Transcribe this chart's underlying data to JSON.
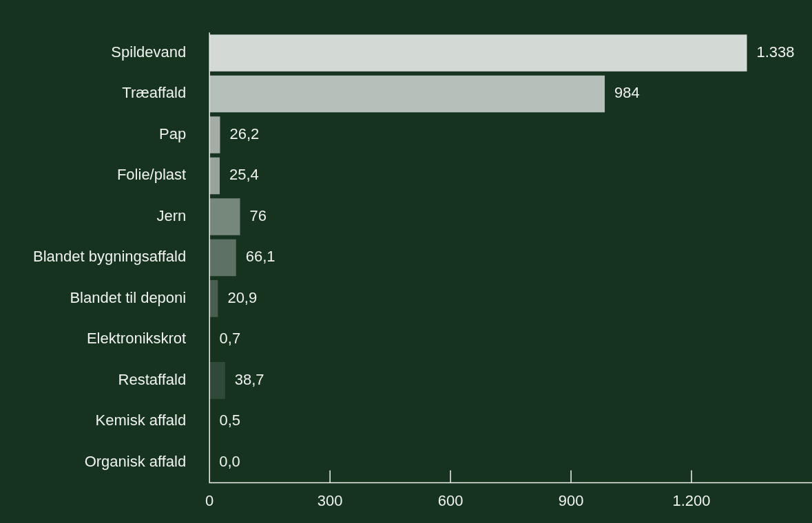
{
  "chart_data": {
    "type": "bar",
    "orientation": "horizontal",
    "categories": [
      "Spildevand",
      "Træaffald",
      "Pap",
      "Folie/plast",
      "Jern",
      "Blandet bygningsaffald",
      "Blandet til deponi",
      "Elektronikskrot",
      "Restaffald",
      "Kemisk affald",
      "Organisk affald"
    ],
    "values": [
      1338,
      984,
      26.2,
      25.4,
      76,
      66.1,
      20.9,
      0.7,
      38.7,
      0.5,
      0.0
    ],
    "value_labels": [
      "1.338",
      "984",
      "26,2",
      "25,4",
      "76",
      "66,1",
      "20,9",
      "0,7",
      "38,7",
      "0,5",
      "0,0"
    ],
    "colors": [
      "#d3d9d4",
      "#b6c0ba",
      "#a3ada6",
      "#97a39b",
      "#76887c",
      "#5d7264",
      "#485e4f",
      "#3e5646",
      "#2f4a39",
      "#2a4434",
      "#243f2f"
    ],
    "xlim": [
      0,
      1500
    ],
    "xticks": [
      0,
      300,
      600,
      900,
      {
        "value": 1200,
        "label": "1.200"
      }
    ],
    "grid": false,
    "legend": false
  }
}
